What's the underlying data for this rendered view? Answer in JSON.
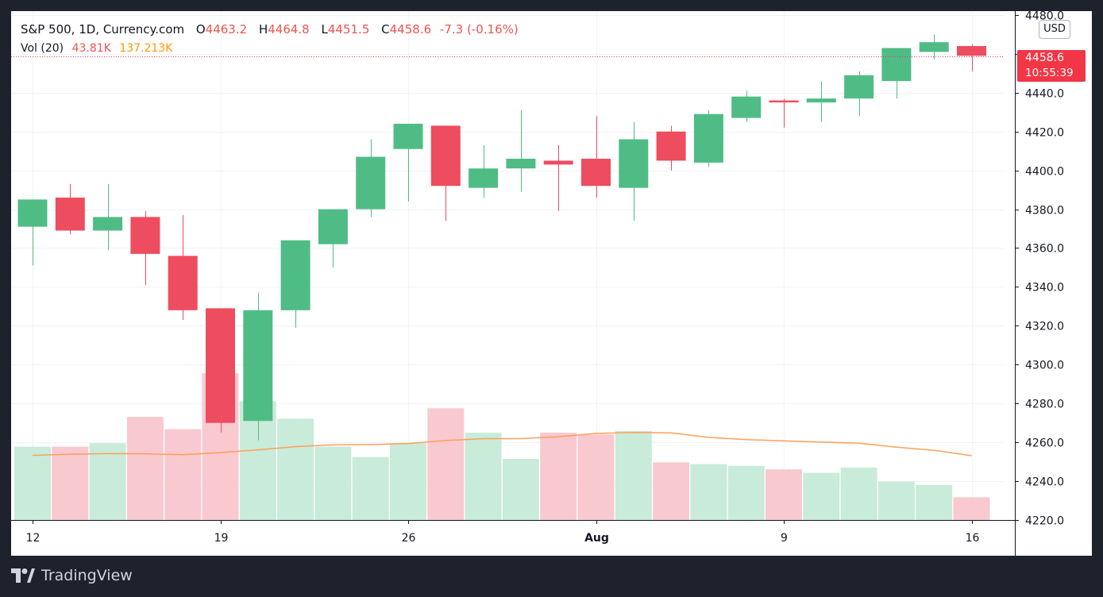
{
  "legend": {
    "symbol": "S&P 500, 1D, Currency.com",
    "o_label": "O",
    "o_value": "4463.2",
    "h_label": "H",
    "h_value": "4464.8",
    "l_label": "L",
    "l_value": "4451.5",
    "c_label": "C",
    "c_value": "4458.6",
    "change": "-7.3 (-0.16%)",
    "vol_label": "Vol (20)",
    "vol_value": "43.81K",
    "vol_ma_value": "137.213K"
  },
  "currency": "USD",
  "price_tag": {
    "price": "4458.6",
    "countdown": "10:55:39"
  },
  "branding": {
    "name": "TradingView"
  },
  "colors": {
    "up": "#26a69a",
    "up_candle": "#4fbc86",
    "down": "#ef5350",
    "down_candle": "#ee4c5f",
    "up_volume": "#c9ebd9",
    "down_volume": "#f9c9d0",
    "volume_ma": "#ff9f59",
    "price_line": "#f23645"
  },
  "chart_data": {
    "type": "candlestick",
    "x_ticks": [
      "12",
      "19",
      "26",
      "Aug",
      "9",
      "16"
    ],
    "x_tick_index": [
      0,
      5,
      10,
      15,
      20,
      25
    ],
    "y_ticks": [
      "4220.0",
      "4240.0",
      "4260.0",
      "4280.0",
      "4300.0",
      "4320.0",
      "4340.0",
      "4360.0",
      "4380.0",
      "4400.0",
      "4420.0",
      "4440.0",
      "4460.0",
      "4480.0"
    ],
    "ylim": [
      4220,
      4482
    ],
    "last_price": 4458.6,
    "candles": [
      {
        "o": 4371,
        "h": 4385,
        "l": 4351,
        "c": 4385
      },
      {
        "o": 4386,
        "h": 4393,
        "l": 4367,
        "c": 4369
      },
      {
        "o": 4369,
        "h": 4393,
        "l": 4359,
        "c": 4376
      },
      {
        "o": 4376,
        "h": 4379,
        "l": 4341,
        "c": 4357
      },
      {
        "o": 4356,
        "h": 4377,
        "l": 4323,
        "c": 4328
      },
      {
        "o": 4329,
        "h": 4329,
        "l": 4265,
        "c": 4270
      },
      {
        "o": 4271,
        "h": 4337,
        "l": 4261,
        "c": 4328
      },
      {
        "o": 4328,
        "h": 4364,
        "l": 4319,
        "c": 4364
      },
      {
        "o": 4362,
        "h": 4380,
        "l": 4350,
        "c": 4380
      },
      {
        "o": 4380,
        "h": 4416,
        "l": 4376,
        "c": 4407
      },
      {
        "o": 4411,
        "h": 4424,
        "l": 4384,
        "c": 4424
      },
      {
        "o": 4423,
        "h": 4423,
        "l": 4374,
        "c": 4392
      },
      {
        "o": 4391,
        "h": 4413,
        "l": 4386,
        "c": 4401
      },
      {
        "o": 4401,
        "h": 4431,
        "l": 4389,
        "c": 4406
      },
      {
        "o": 4405,
        "h": 4413,
        "l": 4379,
        "c": 4403
      },
      {
        "o": 4406,
        "h": 4428,
        "l": 4386,
        "c": 4392
      },
      {
        "o": 4391,
        "h": 4425,
        "l": 4374,
        "c": 4416
      },
      {
        "o": 4420,
        "h": 4423,
        "l": 4400,
        "c": 4405
      },
      {
        "o": 4404,
        "h": 4431,
        "l": 4402,
        "c": 4429
      },
      {
        "o": 4427,
        "h": 4441,
        "l": 4425,
        "c": 4438
      },
      {
        "o": 4436,
        "h": 4437,
        "l": 4422,
        "c": 4435
      },
      {
        "o": 4435,
        "h": 4446,
        "l": 4425,
        "c": 4437
      },
      {
        "o": 4437,
        "h": 4451,
        "l": 4428,
        "c": 4449
      },
      {
        "o": 4446,
        "h": 4463,
        "l": 4437,
        "c": 4463
      },
      {
        "o": 4461,
        "h": 4470,
        "l": 4457,
        "c": 4466
      },
      {
        "o": 4464,
        "h": 4465,
        "l": 4451,
        "c": 4459
      }
    ],
    "volume_scale_max": 100,
    "volume": [
      42,
      42,
      44,
      59,
      52,
      84,
      68,
      58,
      42,
      36,
      44,
      64,
      50,
      35,
      50,
      49,
      51,
      33,
      32,
      31,
      29,
      27,
      30,
      22,
      20,
      13
    ],
    "volume_ma": [
      37,
      37.7,
      38,
      37.9,
      37.4,
      38.6,
      40.2,
      42,
      43,
      43.2,
      43.8,
      45.5,
      46.6,
      46.6,
      47.7,
      49.6,
      50.1,
      49.9,
      47.3,
      46,
      45.3,
      44.6,
      44,
      41.7,
      39.9,
      36.8
    ]
  }
}
